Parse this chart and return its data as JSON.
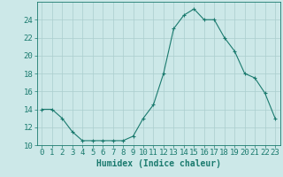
{
  "x": [
    0,
    1,
    2,
    3,
    4,
    5,
    6,
    7,
    8,
    9,
    10,
    11,
    12,
    13,
    14,
    15,
    16,
    17,
    18,
    19,
    20,
    21,
    22,
    23
  ],
  "y": [
    14,
    14,
    13,
    11.5,
    10.5,
    10.5,
    10.5,
    10.5,
    10.5,
    11,
    13,
    14.5,
    18,
    23,
    24.5,
    25.2,
    24,
    24,
    22,
    20.5,
    18,
    17.5,
    15.8,
    13
  ],
  "line_color": "#1a7a6e",
  "marker": "+",
  "marker_color": "#1a7a6e",
  "bg_color": "#cce8e8",
  "grid_color": "#aacece",
  "axis_color": "#1a7a6e",
  "xlabel": "Humidex (Indice chaleur)",
  "ylim": [
    10,
    26
  ],
  "xlim": [
    -0.5,
    23.5
  ],
  "yticks": [
    10,
    12,
    14,
    16,
    18,
    20,
    22,
    24
  ],
  "xticks": [
    0,
    1,
    2,
    3,
    4,
    5,
    6,
    7,
    8,
    9,
    10,
    11,
    12,
    13,
    14,
    15,
    16,
    17,
    18,
    19,
    20,
    21,
    22,
    23
  ],
  "title_color": "#1a7a6e",
  "font_size_label": 7,
  "font_size_tick": 6.5
}
